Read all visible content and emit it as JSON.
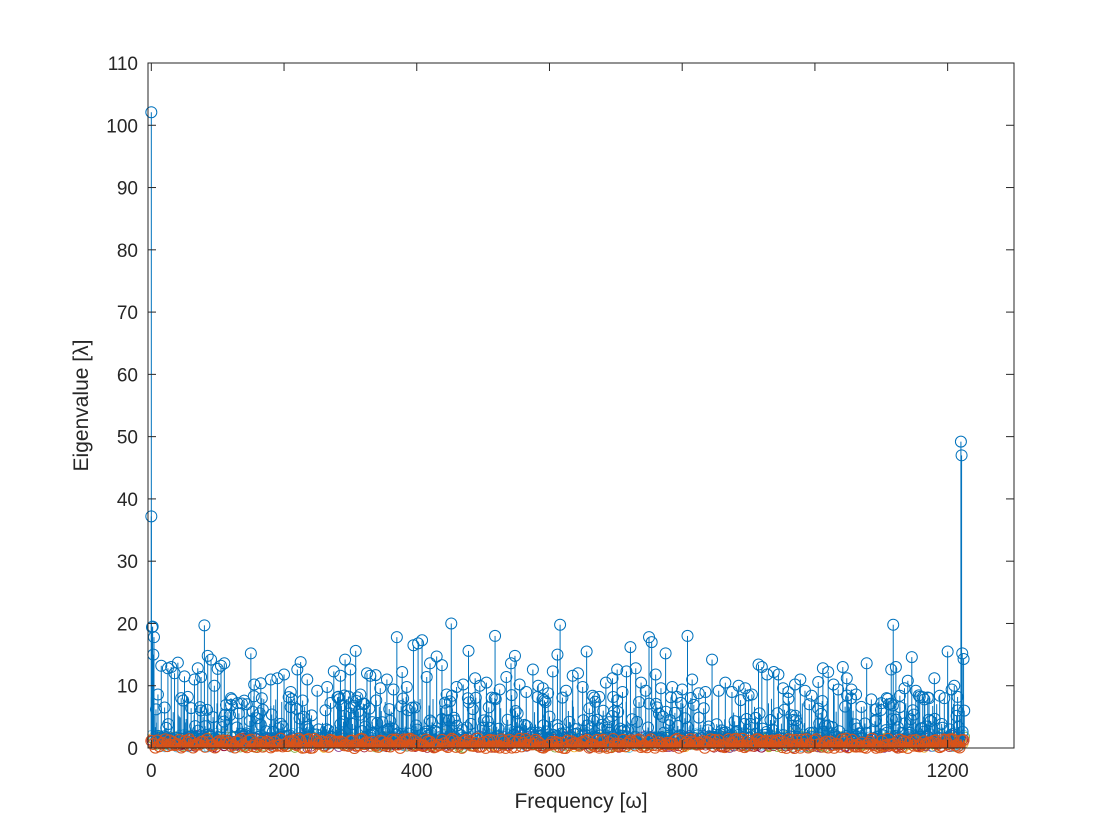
{
  "chart_data": {
    "type": "stem",
    "title": "",
    "xlabel": "Frequency [ω]",
    "ylabel": "Eigenvalue [λ]",
    "xlim": [
      -5,
      1300
    ],
    "ylim": [
      0,
      110
    ],
    "x_ticks": [
      0,
      200,
      400,
      600,
      800,
      1000,
      1200
    ],
    "y_ticks": [
      0,
      10,
      20,
      30,
      40,
      50,
      60,
      70,
      80,
      90,
      100,
      110
    ],
    "grid": false,
    "legend": "none",
    "marker": "open-circle",
    "x_range_of_points": [
      0,
      1225
    ],
    "series": [
      {
        "color": "#0072BD",
        "description": "largest eigenvalue per frequency",
        "points": [
          [
            0,
            102.1
          ],
          [
            0,
            37.2
          ],
          [
            1,
            19.4
          ],
          [
            2,
            19.5
          ],
          [
            3,
            15.0
          ],
          [
            4,
            17.8
          ],
          [
            7,
            6.2
          ],
          [
            10,
            8.6
          ],
          [
            15,
            13.2
          ],
          [
            20,
            6.5
          ],
          [
            25,
            12.8
          ],
          [
            30,
            13.0
          ],
          [
            35,
            12.0
          ],
          [
            40,
            13.7
          ],
          [
            45,
            8.0
          ],
          [
            50,
            11.5
          ],
          [
            55,
            8.2
          ],
          [
            60,
            6.4
          ],
          [
            65,
            11.0
          ],
          [
            70,
            12.8
          ],
          [
            75,
            11.4
          ],
          [
            80,
            19.7
          ],
          [
            85,
            14.8
          ],
          [
            90,
            14.2
          ],
          [
            95,
            10.0
          ],
          [
            100,
            12.7
          ],
          [
            105,
            13.2
          ],
          [
            110,
            13.6
          ],
          [
            120,
            8.0
          ],
          [
            130,
            7.2
          ],
          [
            140,
            7.6
          ],
          [
            150,
            15.2
          ],
          [
            155,
            10.2
          ],
          [
            165,
            10.4
          ],
          [
            180,
            11.0
          ],
          [
            190,
            11.2
          ],
          [
            200,
            11.8
          ],
          [
            210,
            9.0
          ],
          [
            220,
            12.6
          ],
          [
            225,
            13.8
          ],
          [
            235,
            11.0
          ],
          [
            250,
            9.2
          ],
          [
            265,
            9.8
          ],
          [
            275,
            12.3
          ],
          [
            285,
            11.6
          ],
          [
            292,
            14.2
          ],
          [
            300,
            12.6
          ],
          [
            308,
            15.6
          ],
          [
            315,
            8.6
          ],
          [
            325,
            12.0
          ],
          [
            330,
            11.6
          ],
          [
            338,
            11.7
          ],
          [
            345,
            9.6
          ],
          [
            355,
            11.0
          ],
          [
            365,
            9.4
          ],
          [
            370,
            17.8
          ],
          [
            378,
            12.2
          ],
          [
            385,
            9.8
          ],
          [
            395,
            16.5
          ],
          [
            402,
            16.8
          ],
          [
            408,
            17.3
          ],
          [
            415,
            11.4
          ],
          [
            420,
            13.6
          ],
          [
            430,
            14.7
          ],
          [
            438,
            13.3
          ],
          [
            445,
            8.6
          ],
          [
            452,
            20.0
          ],
          [
            460,
            9.8
          ],
          [
            470,
            10.2
          ],
          [
            478,
            15.6
          ],
          [
            488,
            11.2
          ],
          [
            495,
            10.0
          ],
          [
            505,
            10.5
          ],
          [
            518,
            18.0
          ],
          [
            525,
            9.4
          ],
          [
            535,
            11.4
          ],
          [
            542,
            13.6
          ],
          [
            548,
            14.8
          ],
          [
            555,
            10.2
          ],
          [
            565,
            9.0
          ],
          [
            575,
            12.6
          ],
          [
            583,
            10.0
          ],
          [
            590,
            9.6
          ],
          [
            598,
            8.8
          ],
          [
            605,
            12.3
          ],
          [
            612,
            15.0
          ],
          [
            616,
            19.8
          ],
          [
            625,
            9.2
          ],
          [
            635,
            11.6
          ],
          [
            643,
            12.0
          ],
          [
            650,
            9.8
          ],
          [
            656,
            15.5
          ],
          [
            665,
            8.4
          ],
          [
            675,
            8.2
          ],
          [
            685,
            10.5
          ],
          [
            695,
            11.2
          ],
          [
            702,
            12.6
          ],
          [
            710,
            9.0
          ],
          [
            716,
            12.3
          ],
          [
            722,
            16.2
          ],
          [
            730,
            12.8
          ],
          [
            738,
            10.5
          ],
          [
            745,
            9.2
          ],
          [
            750,
            17.8
          ],
          [
            754,
            17.0
          ],
          [
            760,
            11.8
          ],
          [
            768,
            9.6
          ],
          [
            775,
            15.2
          ],
          [
            785,
            9.8
          ],
          [
            792,
            8.2
          ],
          [
            800,
            9.4
          ],
          [
            808,
            18.0
          ],
          [
            815,
            11.0
          ],
          [
            825,
            8.8
          ],
          [
            835,
            9.0
          ],
          [
            845,
            14.2
          ],
          [
            855,
            9.2
          ],
          [
            865,
            10.5
          ],
          [
            875,
            9.0
          ],
          [
            885,
            10.0
          ],
          [
            895,
            9.6
          ],
          [
            905,
            8.6
          ],
          [
            915,
            13.4
          ],
          [
            920,
            13.0
          ],
          [
            928,
            11.8
          ],
          [
            938,
            12.2
          ],
          [
            945,
            11.8
          ],
          [
            952,
            9.6
          ],
          [
            960,
            9.0
          ],
          [
            970,
            10.2
          ],
          [
            978,
            11.0
          ],
          [
            985,
            9.2
          ],
          [
            995,
            8.4
          ],
          [
            1005,
            10.6
          ],
          [
            1012,
            12.8
          ],
          [
            1020,
            12.2
          ],
          [
            1028,
            10.2
          ],
          [
            1035,
            9.4
          ],
          [
            1042,
            13.0
          ],
          [
            1048,
            11.2
          ],
          [
            1055,
            9.4
          ],
          [
            1062,
            8.6
          ],
          [
            1070,
            6.6
          ],
          [
            1078,
            13.6
          ],
          [
            1085,
            7.8
          ],
          [
            1092,
            6.2
          ],
          [
            1100,
            7.2
          ],
          [
            1108,
            8.0
          ],
          [
            1115,
            12.6
          ],
          [
            1118,
            19.8
          ],
          [
            1122,
            13.0
          ],
          [
            1128,
            8.4
          ],
          [
            1135,
            9.6
          ],
          [
            1140,
            10.8
          ],
          [
            1146,
            14.6
          ],
          [
            1152,
            9.2
          ],
          [
            1158,
            8.2
          ],
          [
            1165,
            7.8
          ],
          [
            1172,
            8.0
          ],
          [
            1180,
            11.2
          ],
          [
            1188,
            8.4
          ],
          [
            1195,
            8.0
          ],
          [
            1200,
            15.5
          ],
          [
            1206,
            9.4
          ],
          [
            1210,
            10.0
          ],
          [
            1215,
            8.2
          ],
          [
            1220,
            49.2
          ],
          [
            1221,
            47.0
          ],
          [
            1222,
            15.2
          ],
          [
            1224,
            14.3
          ],
          [
            1225,
            6.0
          ]
        ]
      },
      {
        "color": "#D95319",
        "description": "remaining eigenvalues (dense band)",
        "band_max": 1.5
      },
      {
        "color": "#EDB120",
        "band_max": 2.4
      },
      {
        "color": "#7E2F8E",
        "band_max": 2.2
      },
      {
        "color": "#77AC30",
        "band_max": 2.0
      },
      {
        "color": "#4DBEEE",
        "band_max": 2.6
      },
      {
        "color": "#A2142F",
        "band_max": 1.8
      }
    ]
  }
}
